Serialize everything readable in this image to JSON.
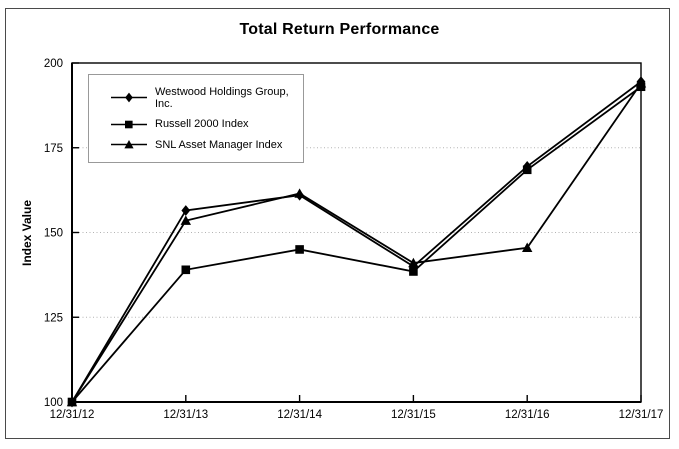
{
  "chart_data": {
    "type": "line",
    "title": "Total Return Performance",
    "ylabel": "Index Value",
    "xlabel": "",
    "x_categories": [
      "12/31/12",
      "12/31/13",
      "12/31/14",
      "12/31/15",
      "12/31/16",
      "12/31/17"
    ],
    "y_ticks": [
      100,
      125,
      150,
      175,
      200
    ],
    "ylim": [
      100,
      200
    ],
    "grid": "dotted horizontal gridlines at 125, 150, 175",
    "legend_position": "top-left inside plot area",
    "line_color": "#000000",
    "grid_color": "#b3b3b3",
    "series": [
      {
        "name": "Westwood Holdings Group, Inc.",
        "marker": "diamond",
        "values": [
          100,
          156.5,
          161,
          140,
          169.5,
          194.5
        ]
      },
      {
        "name": "Russell 2000 Index",
        "marker": "square",
        "values": [
          100,
          139,
          145,
          138.5,
          168.5,
          193
        ]
      },
      {
        "name": "SNL Asset Manager Index",
        "marker": "triangle",
        "values": [
          100,
          153.5,
          161.5,
          141,
          145.5,
          194
        ]
      }
    ]
  }
}
